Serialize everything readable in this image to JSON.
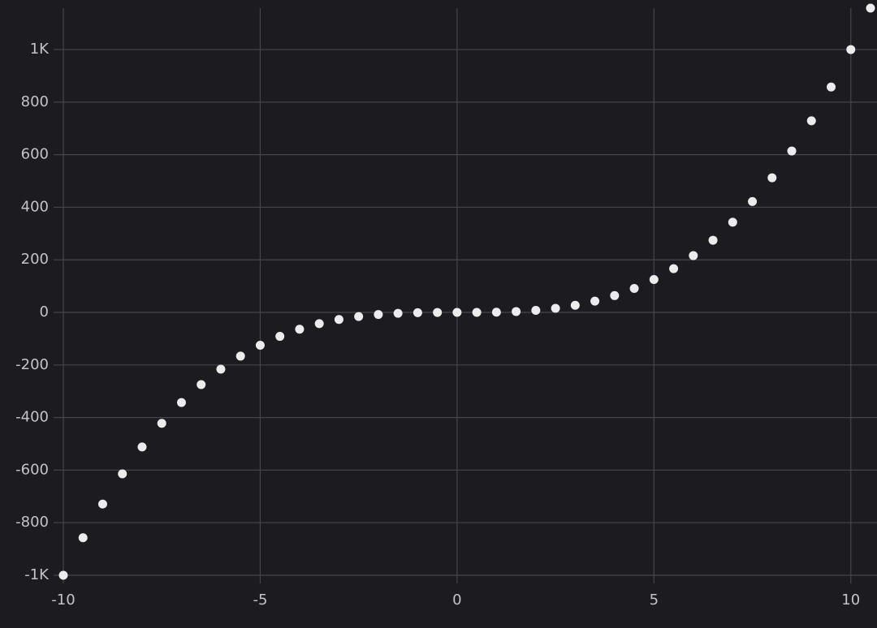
{
  "chart_data": {
    "type": "scatter",
    "x": [
      -10,
      -9.5,
      -9,
      -8.5,
      -8,
      -7.5,
      -7,
      -6.5,
      -6,
      -5.5,
      -5,
      -4.5,
      -4,
      -3.5,
      -3,
      -2.5,
      -2,
      -1.5,
      -1,
      -0.5,
      0,
      0.5,
      1,
      1.5,
      2,
      2.5,
      3,
      3.5,
      4,
      4.5,
      5,
      5.5,
      6,
      6.5,
      7,
      7.5,
      8,
      8.5,
      9,
      9.5,
      10,
      10.5
    ],
    "values": [
      -1000,
      -857.375,
      -729,
      -614.125,
      -512,
      -421.875,
      -343,
      -274.625,
      -216,
      -166.375,
      -125,
      -91.125,
      -64,
      -42.875,
      -27,
      -15.625,
      -8,
      -3.375,
      -1,
      -0.125,
      0,
      0.125,
      1,
      3.375,
      8,
      15.625,
      27,
      42.875,
      64,
      91.125,
      125,
      166.375,
      216,
      274.625,
      343,
      421.875,
      512,
      614.125,
      729,
      857.375,
      1000,
      1157.625
    ],
    "color": "#ececec",
    "xlim": [
      -10,
      10.5
    ],
    "ylim": [
      -1000,
      1157.625
    ],
    "xticks": [
      -10,
      -5,
      0,
      5,
      10
    ],
    "yticks": [
      {
        "value": -1000,
        "label": "-1K"
      },
      -800,
      -600,
      -400,
      -200,
      0,
      200,
      400,
      600,
      800,
      {
        "value": 1000,
        "label": "1K"
      }
    ],
    "grid": true
  }
}
